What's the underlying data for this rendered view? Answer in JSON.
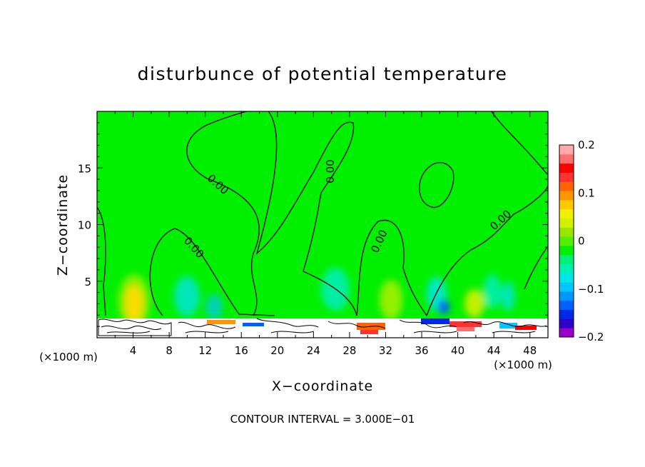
{
  "chart_data": {
    "type": "heatmap",
    "title": "disturbunce of potential temperature",
    "xlabel": "X−coordinate",
    "ylabel": "Z−coordinate",
    "x_unit_left": "(×1000 m)",
    "x_unit_right": "(×1000 m)",
    "xlim": [
      0,
      50
    ],
    "ylim": [
      0,
      20
    ],
    "x_ticks": [
      4,
      8,
      12,
      16,
      20,
      24,
      28,
      32,
      36,
      40,
      44,
      48
    ],
    "x_tick_labels": [
      "4",
      "8",
      "12",
      "16",
      "20",
      "24",
      "28",
      "32",
      "36",
      "40",
      "44",
      "48"
    ],
    "y_ticks": [
      5,
      10,
      15
    ],
    "y_tick_labels": [
      "5",
      "10",
      "15"
    ],
    "colorbar": {
      "range": [
        -0.2,
        0.2
      ],
      "tick_values": [
        0.2,
        0.1,
        0,
        -0.1,
        -0.2
      ],
      "tick_labels": [
        "0.2",
        "0.1",
        "0",
        "−0.1",
        "−0.2"
      ],
      "colors": [
        "#9B00C8",
        "#3000C8",
        "#0028E6",
        "#0060FF",
        "#0096FF",
        "#00C8FF",
        "#00E6E6",
        "#00F0B4",
        "#00F078",
        "#00F000",
        "#50F000",
        "#96E600",
        "#D2F000",
        "#F0F000",
        "#FFC800",
        "#FF9600",
        "#FF6400",
        "#FF3232",
        "#FF0000",
        "#FF6E6E",
        "#FFAAAA"
      ]
    },
    "contour_labels": [
      "0.00",
      "0.00",
      "0.00",
      "0.00",
      "0.00"
    ],
    "contour_interval_text": "CONTOUR INTERVAL = 3.000E−01",
    "grid": false
  }
}
